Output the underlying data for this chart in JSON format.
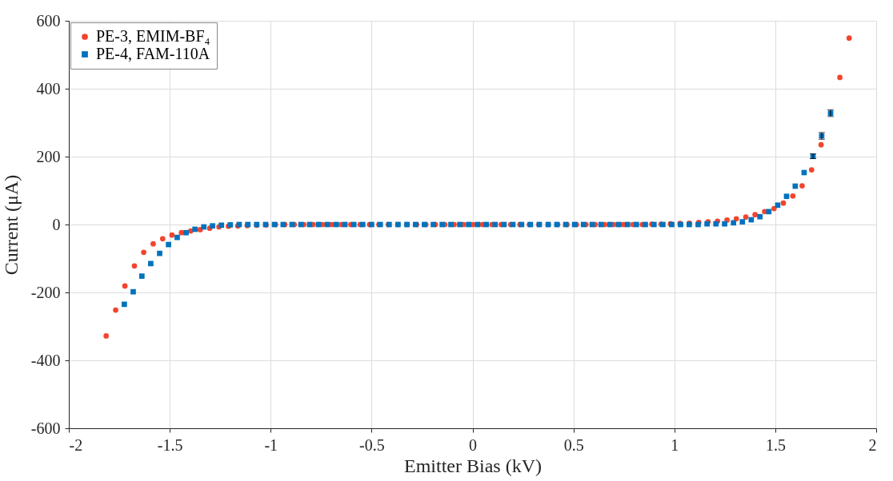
{
  "chart_data": {
    "type": "scatter",
    "xlabel": "Emitter Bias (kV)",
    "ylabel": "Current (μA)",
    "xlim": [
      -2,
      2
    ],
    "xticks": [
      -2,
      -1.5,
      -1,
      -0.5,
      0,
      0.5,
      1,
      1.5,
      2
    ],
    "ylim": [
      -600,
      600
    ],
    "yticks": [
      -600,
      -400,
      -200,
      0,
      200,
      400,
      600
    ],
    "grid": true,
    "legend": "top left",
    "series": [
      {
        "name": "PE-3, EMIM-BF₄",
        "color": "#f4442e",
        "marker": "circle",
        "x": [
          -1.815,
          -1.768,
          -1.722,
          -1.675,
          -1.629,
          -1.582,
          -1.535,
          -1.489,
          -1.442,
          -1.396,
          -1.349,
          -1.302,
          -1.256,
          -1.209,
          -1.163,
          -1.116,
          -1.069,
          -1.023,
          -0.976,
          -0.93,
          -0.883,
          -0.836,
          -0.79,
          -0.743,
          -0.697,
          -0.65,
          -0.603,
          -0.557,
          -0.51,
          -0.464,
          -0.417,
          -0.37,
          -0.324,
          -0.277,
          -0.231,
          -0.184,
          -0.137,
          -0.091,
          -0.044,
          0.002,
          0.049,
          0.096,
          0.142,
          0.189,
          0.235,
          0.282,
          0.329,
          0.375,
          0.422,
          0.468,
          0.515,
          0.562,
          0.608,
          0.655,
          0.701,
          0.748,
          0.795,
          0.841,
          0.888,
          0.934,
          0.981,
          1.028,
          1.074,
          1.121,
          1.167,
          1.214,
          1.261,
          1.307,
          1.354,
          1.4,
          1.447,
          1.494,
          1.54,
          1.587,
          1.633,
          1.68,
          1.727,
          1.773,
          1.82,
          1.866
        ],
        "values": [
          -328,
          -252,
          -181,
          -122,
          -82,
          -57,
          -42,
          -31,
          -24,
          -19,
          -15,
          -11,
          -7,
          -5,
          -4,
          -3,
          -2,
          -1,
          0,
          0,
          0,
          0,
          0,
          0,
          0,
          0,
          0,
          0,
          0,
          0,
          0,
          0,
          0,
          0,
          0,
          0,
          0,
          0,
          0,
          0,
          0,
          0,
          0,
          0,
          0,
          0,
          0,
          0,
          0,
          0,
          0,
          0,
          0,
          0,
          0,
          0,
          0,
          0,
          1,
          1,
          2,
          3,
          4,
          6,
          8,
          10,
          13,
          17,
          22,
          29,
          38,
          47,
          63,
          84,
          114,
          161,
          235,
          null,
          433,
          549
        ]
      },
      {
        "name": "PE-4, FAM-110A",
        "color": "#0072bd",
        "marker": "square",
        "x": [
          -1.725,
          -1.681,
          -1.638,
          -1.594,
          -1.55,
          -1.506,
          -1.463,
          -1.419,
          -1.375,
          -1.331,
          -1.288,
          -1.244,
          -1.2,
          -1.156,
          -1.113,
          -1.069,
          -1.025,
          -0.981,
          -0.938,
          -0.894,
          -0.85,
          -0.807,
          -0.763,
          -0.719,
          -0.675,
          -0.632,
          -0.588,
          -0.544,
          -0.5,
          -0.457,
          -0.413,
          -0.369,
          -0.325,
          -0.282,
          -0.238,
          -0.194,
          -0.15,
          -0.107,
          -0.063,
          -0.019,
          0.025,
          0.068,
          0.112,
          0.156,
          0.2,
          0.243,
          0.287,
          0.331,
          0.375,
          0.418,
          0.462,
          0.506,
          0.55,
          0.593,
          0.637,
          0.681,
          0.725,
          0.768,
          0.812,
          0.856,
          0.899,
          0.943,
          0.987,
          1.031,
          1.074,
          1.118,
          1.162,
          1.206,
          1.249,
          1.293,
          1.337,
          1.381,
          1.424,
          1.468,
          1.512,
          1.556,
          1.599,
          1.643,
          1.687,
          1.73,
          1.774
        ],
        "values": [
          -235,
          -198,
          -152,
          -115,
          -85,
          -59,
          -38,
          -24,
          -14,
          -7,
          -4,
          -2,
          -1,
          0,
          0,
          0,
          0,
          0,
          0,
          0,
          0,
          0,
          0,
          0,
          0,
          0,
          0,
          0,
          0,
          0,
          0,
          0,
          0,
          0,
          0,
          0,
          0,
          0,
          0,
          0,
          0,
          0,
          0,
          0,
          0,
          0,
          0,
          0,
          0,
          0,
          0,
          0,
          0,
          0,
          0,
          0,
          0,
          0,
          0,
          0,
          0,
          0,
          0,
          0,
          0,
          0,
          2,
          2,
          2,
          5,
          8,
          14,
          23,
          38,
          57,
          83,
          113,
          153,
          201,
          261,
          328
        ],
        "errors": [
          null,
          null,
          null,
          null,
          null,
          null,
          null,
          null,
          null,
          null,
          null,
          null,
          null,
          null,
          null,
          null,
          null,
          null,
          null,
          null,
          null,
          null,
          null,
          null,
          null,
          null,
          null,
          null,
          null,
          null,
          null,
          null,
          null,
          null,
          null,
          null,
          null,
          null,
          null,
          null,
          null,
          null,
          null,
          null,
          null,
          null,
          null,
          null,
          null,
          null,
          null,
          null,
          null,
          null,
          null,
          null,
          null,
          null,
          null,
          null,
          null,
          null,
          null,
          null,
          null,
          null,
          null,
          null,
          null,
          null,
          null,
          null,
          null,
          null,
          null,
          null,
          null,
          null,
          7,
          10,
          10
        ]
      }
    ]
  }
}
